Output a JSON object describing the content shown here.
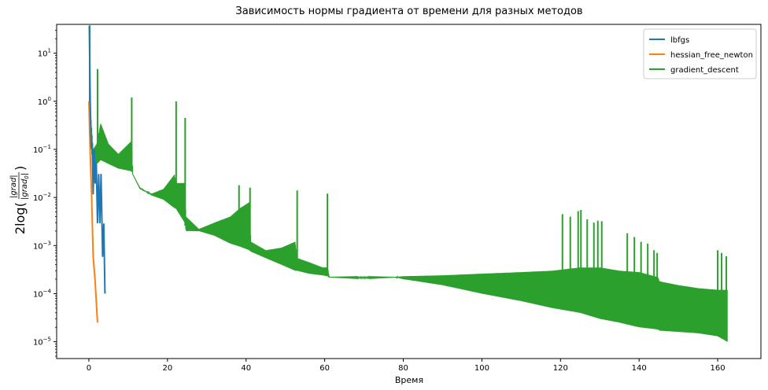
{
  "chart_data": {
    "type": "line",
    "title": "Зависимость нормы градиента от времени для разных методов",
    "xlabel": "Время",
    "ylabel_prefix": "2log(",
    "ylabel_numerator": "|grad|",
    "ylabel_denominator_main": "|grad",
    "ylabel_denominator_sub": "0",
    "ylabel_denominator_close": "|",
    "ylabel_suffix": ")",
    "xlim": [
      -8.2,
      171
    ],
    "ylim_log10": [
      -5.35,
      1.6
    ],
    "yscale": "log",
    "grid": false,
    "legend_position": "top-right",
    "x_ticks": [
      0,
      20,
      40,
      60,
      80,
      100,
      120,
      140,
      160
    ],
    "y_ticks_log10": [
      -5,
      -4,
      -3,
      -2,
      -1,
      0,
      1
    ],
    "series": [
      {
        "name": "lbfgs",
        "color": "#1f77b4",
        "x": [
          0.1,
          0.35,
          0.6,
          0.85,
          1.1,
          1.35,
          1.6,
          1.9,
          2.2,
          2.5,
          2.8,
          3.1,
          3.5,
          3.8,
          4.1
        ],
        "y": [
          37,
          0.9,
          0.11,
          0.13,
          0.012,
          0.1,
          0.02,
          0.05,
          0.003,
          0.03,
          0.003,
          0.03,
          0.0006,
          0.0028,
          0.0001
        ]
      },
      {
        "name": "hessian_free_newton",
        "color": "#ff7f0e",
        "x": [
          0,
          0.3,
          0.7,
          1.1,
          1.6,
          2.2
        ],
        "y": [
          1.0,
          0.1,
          0.01,
          0.0006,
          0.00018,
          2.5e-05
        ]
      },
      {
        "name": "gradient_descent",
        "color": "#2ca02c",
        "env_x": [
          0.2,
          1.1,
          2.0,
          3.0,
          5.0,
          7.5,
          10.9,
          11.2,
          13.0,
          16.0,
          19.0,
          21.8,
          22.1,
          24.4,
          24.7,
          28.0,
          32.0,
          36.0,
          38.5,
          40.9,
          41.2,
          45.0,
          49.0,
          52.5,
          53.0,
          56.0,
          59.5,
          60.8,
          61.2,
          70.0,
          78.0,
          80.0,
          90.0,
          100.0,
          110.0,
          118.0,
          125.0,
          130.0,
          135.0,
          140.0,
          144.8,
          145.2,
          150.0,
          155.0,
          160.0,
          162.5
        ],
        "env_hi": [
          1.2,
          0.1,
          0.13,
          0.35,
          0.13,
          0.08,
          0.15,
          0.03,
          0.015,
          0.012,
          0.015,
          0.03,
          0.02,
          0.02,
          0.004,
          0.0022,
          0.003,
          0.004,
          0.006,
          0.008,
          0.0012,
          0.0008,
          0.0009,
          0.0012,
          0.00055,
          0.00045,
          0.00035,
          0.00035,
          0.00022,
          0.00021,
          0.00022,
          0.00023,
          0.00024,
          0.00026,
          0.00028,
          0.0003,
          0.00035,
          0.00035,
          0.0003,
          0.00028,
          0.00022,
          0.00018,
          0.00015,
          0.00013,
          0.00012,
          0.00012
        ],
        "env_lo": [
          0.2,
          0.04,
          0.05,
          0.06,
          0.05,
          0.04,
          0.035,
          0.03,
          0.016,
          0.011,
          0.009,
          0.006,
          0.006,
          0.003,
          0.002,
          0.002,
          0.0016,
          0.0011,
          0.00095,
          0.0008,
          0.00075,
          0.00055,
          0.0004,
          0.0003,
          0.0003,
          0.00026,
          0.00024,
          0.00023,
          0.00022,
          0.00022,
          0.00022,
          0.0002,
          0.00015,
          0.0001,
          7e-05,
          5e-05,
          4e-05,
          3e-05,
          2.5e-05,
          2e-05,
          1.8e-05,
          1.7e-05,
          1.6e-05,
          1.5e-05,
          1.3e-05,
          1e-05
        ],
        "spikes": [
          [
            0.2,
            38
          ],
          [
            2.2,
            4.7
          ],
          [
            10.9,
            1.2
          ],
          [
            22.2,
            1.0
          ],
          [
            24.5,
            0.45
          ],
          [
            38.2,
            0.018
          ],
          [
            41.0,
            0.016
          ],
          [
            53.0,
            0.014
          ],
          [
            60.7,
            0.012
          ],
          [
            120.5,
            0.0045
          ],
          [
            122.5,
            0.004
          ],
          [
            124.5,
            0.0052
          ],
          [
            125.2,
            0.0055
          ],
          [
            126.8,
            0.0035
          ],
          [
            128.5,
            0.003
          ],
          [
            129.5,
            0.0033
          ],
          [
            130.5,
            0.0032
          ],
          [
            137.0,
            0.0018
          ],
          [
            138.8,
            0.0015
          ],
          [
            140.5,
            0.0012
          ],
          [
            142.2,
            0.0011
          ],
          [
            143.8,
            0.0008
          ],
          [
            144.6,
            0.0007
          ],
          [
            160.0,
            0.0008
          ],
          [
            161.0,
            0.0007
          ],
          [
            162.2,
            0.0006
          ]
        ]
      }
    ]
  }
}
